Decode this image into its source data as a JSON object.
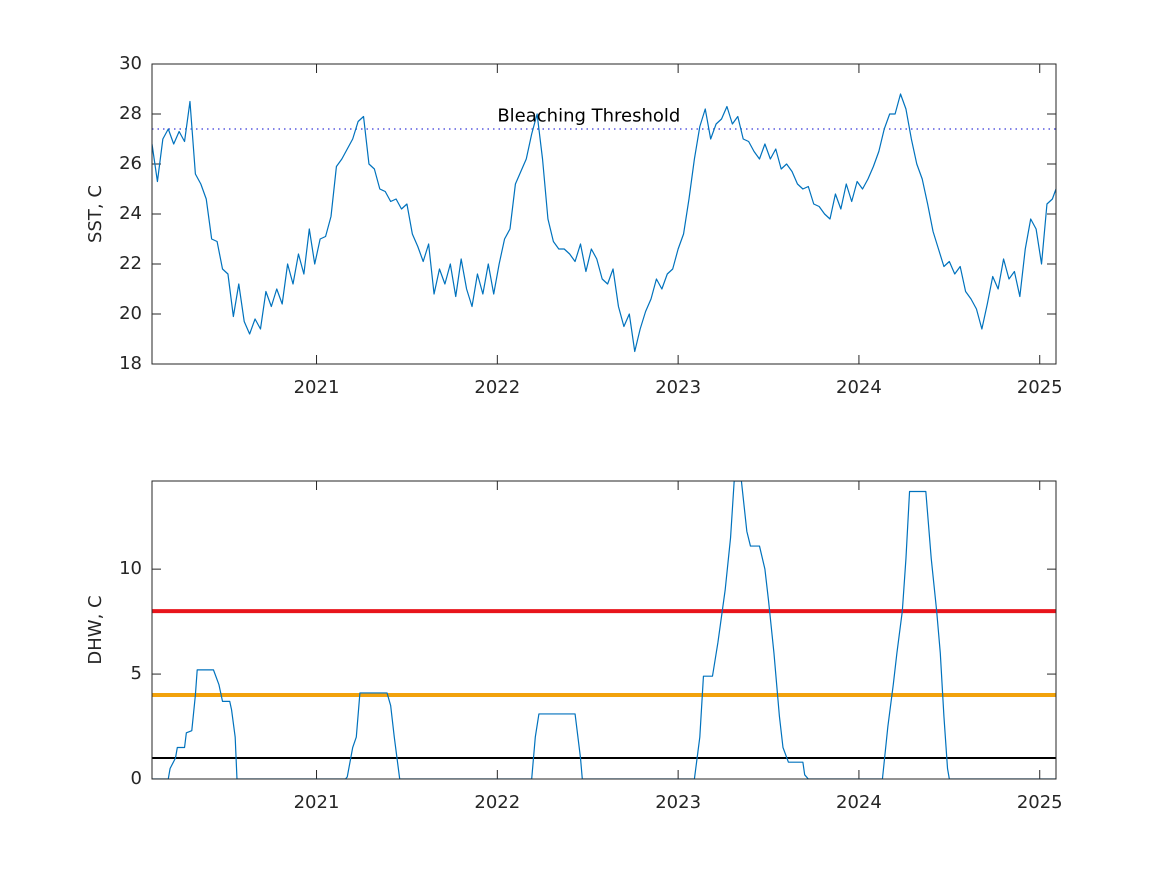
{
  "chart_data": [
    {
      "type": "line",
      "ylabel": "SST, C",
      "color": "#0072bd",
      "xlim": [
        2020.09,
        2025.09
      ],
      "xticks": [
        2021,
        2022,
        2023,
        2024,
        2025
      ],
      "ylim": [
        18,
        30
      ],
      "yticks": [
        18,
        20,
        22,
        24,
        26,
        28,
        30
      ],
      "threshold": 27.4,
      "threshold_color": "#5a5ae0",
      "annotation": {
        "text": "Bleaching Threshold",
        "x": 2022,
        "y": 27.9
      },
      "x": [
        2020.09,
        2020.12,
        2020.15,
        2020.18,
        2020.21,
        2020.24,
        2020.27,
        2020.3,
        2020.33,
        2020.36,
        2020.39,
        2020.42,
        2020.45,
        2020.48,
        2020.51,
        2020.54,
        2020.57,
        2020.6,
        2020.63,
        2020.66,
        2020.69,
        2020.72,
        2020.75,
        2020.78,
        2020.81,
        2020.84,
        2020.87,
        2020.9,
        2020.93,
        2020.96,
        2020.99,
        2021.02,
        2021.05,
        2021.08,
        2021.11,
        2021.14,
        2021.17,
        2021.2,
        2021.23,
        2021.26,
        2021.29,
        2021.32,
        2021.35,
        2021.38,
        2021.41,
        2021.44,
        2021.47,
        2021.5,
        2021.53,
        2021.56,
        2021.59,
        2021.62,
        2021.65,
        2021.68,
        2021.71,
        2021.74,
        2021.77,
        2021.8,
        2021.83,
        2021.86,
        2021.89,
        2021.92,
        2021.95,
        2021.98,
        2022.01,
        2022.04,
        2022.07,
        2022.1,
        2022.13,
        2022.16,
        2022.19,
        2022.22,
        2022.25,
        2022.28,
        2022.31,
        2022.34,
        2022.37,
        2022.4,
        2022.43,
        2022.46,
        2022.49,
        2022.52,
        2022.55,
        2022.58,
        2022.61,
        2022.64,
        2022.67,
        2022.7,
        2022.73,
        2022.76,
        2022.79,
        2022.82,
        2022.85,
        2022.88,
        2022.91,
        2022.94,
        2022.97,
        2023.0,
        2023.03,
        2023.06,
        2023.09,
        2023.12,
        2023.15,
        2023.18,
        2023.21,
        2023.24,
        2023.27,
        2023.3,
        2023.33,
        2023.36,
        2023.39,
        2023.42,
        2023.45,
        2023.48,
        2023.51,
        2023.54,
        2023.57,
        2023.6,
        2023.63,
        2023.66,
        2023.69,
        2023.72,
        2023.75,
        2023.78,
        2023.81,
        2023.84,
        2023.87,
        2023.9,
        2023.93,
        2023.96,
        2023.99,
        2024.02,
        2024.05,
        2024.08,
        2024.11,
        2024.14,
        2024.17,
        2024.2,
        2024.23,
        2024.26,
        2024.29,
        2024.32,
        2024.35,
        2024.38,
        2024.41,
        2024.44,
        2024.47,
        2024.5,
        2024.53,
        2024.56,
        2024.59,
        2024.62,
        2024.65,
        2024.68,
        2024.71,
        2024.74,
        2024.77,
        2024.8,
        2024.83,
        2024.86,
        2024.89,
        2024.92,
        2024.95,
        2024.98,
        2025.01,
        2025.04,
        2025.07,
        2025.09
      ],
      "values": [
        26.8,
        25.3,
        27.0,
        27.4,
        26.8,
        27.3,
        26.9,
        28.5,
        25.6,
        25.2,
        24.6,
        23.0,
        22.9,
        21.8,
        21.6,
        19.9,
        21.2,
        19.7,
        19.2,
        19.8,
        19.4,
        20.9,
        20.3,
        21.0,
        20.4,
        22.0,
        21.2,
        22.4,
        21.6,
        23.4,
        22.0,
        23.0,
        23.1,
        23.9,
        25.9,
        26.2,
        26.6,
        27.0,
        27.7,
        27.9,
        26.0,
        25.8,
        25.0,
        24.9,
        24.5,
        24.6,
        24.2,
        24.4,
        23.2,
        22.7,
        22.1,
        22.8,
        20.8,
        21.8,
        21.2,
        22.0,
        20.7,
        22.2,
        21.0,
        20.3,
        21.6,
        20.8,
        22.0,
        20.8,
        22.0,
        23.0,
        23.4,
        25.2,
        25.7,
        26.2,
        27.2,
        28.0,
        26.2,
        23.8,
        22.9,
        22.6,
        22.6,
        22.4,
        22.1,
        22.8,
        21.7,
        22.6,
        22.2,
        21.4,
        21.2,
        21.8,
        20.3,
        19.5,
        20.0,
        18.5,
        19.4,
        20.1,
        20.6,
        21.4,
        21.0,
        21.6,
        21.8,
        22.6,
        23.2,
        24.6,
        26.2,
        27.5,
        28.2,
        27.0,
        27.6,
        27.8,
        28.3,
        27.6,
        27.9,
        27.0,
        26.9,
        26.5,
        26.2,
        26.8,
        26.2,
        26.6,
        25.8,
        26.0,
        25.7,
        25.2,
        25.0,
        25.1,
        24.4,
        24.3,
        24.0,
        23.8,
        24.8,
        24.2,
        25.2,
        24.5,
        25.3,
        25.0,
        25.4,
        25.9,
        26.5,
        27.4,
        28.0,
        28.0,
        28.8,
        28.2,
        27.0,
        26.0,
        25.4,
        24.4,
        23.3,
        22.6,
        21.9,
        22.1,
        21.6,
        21.9,
        20.9,
        20.6,
        20.2,
        19.4,
        20.4,
        21.5,
        21.0,
        22.2,
        21.4,
        21.7,
        20.7,
        22.6,
        23.8,
        23.4,
        22.0,
        24.4,
        24.6,
        25.0
      ]
    },
    {
      "type": "line",
      "ylabel": "DHW, C",
      "color": "#0072bd",
      "xlim": [
        2020.09,
        2025.09
      ],
      "xticks": [
        2021,
        2022,
        2023,
        2024,
        2025
      ],
      "ylim": [
        0,
        14.2
      ],
      "yticks": [
        0,
        5,
        10
      ],
      "hlines": [
        {
          "value": 8,
          "color": "#e8141b"
        },
        {
          "value": 4,
          "color": "#f2a20c"
        },
        {
          "value": 1,
          "color": "#000000"
        }
      ],
      "x": [
        2020.09,
        2020.18,
        2020.19,
        2020.22,
        2020.23,
        2020.27,
        2020.28,
        2020.31,
        2020.33,
        2020.34,
        2020.43,
        2020.46,
        2020.48,
        2020.52,
        2020.53,
        2020.55,
        2020.56,
        2021.16,
        2021.17,
        2021.2,
        2021.22,
        2021.24,
        2021.39,
        2021.41,
        2021.43,
        2021.46,
        2022.19,
        2022.21,
        2022.23,
        2022.43,
        2022.46,
        2022.47,
        2023.09,
        2023.12,
        2023.14,
        2023.19,
        2023.22,
        2023.26,
        2023.29,
        2023.31,
        2023.35,
        2023.38,
        2023.4,
        2023.45,
        2023.48,
        2023.5,
        2023.53,
        2023.56,
        2023.58,
        2023.61,
        2023.69,
        2023.7,
        2023.72,
        2024.13,
        2024.16,
        2024.19,
        2024.21,
        2024.24,
        2024.26,
        2024.28,
        2024.37,
        2024.4,
        2024.43,
        2024.45,
        2024.47,
        2024.49,
        2024.5,
        2025.09
      ],
      "values": [
        0,
        0,
        0.5,
        1.0,
        1.5,
        1.5,
        2.2,
        2.3,
        4.0,
        5.2,
        5.2,
        4.5,
        3.7,
        3.7,
        3.3,
        2.0,
        0,
        0,
        0.1,
        1.5,
        2.0,
        4.1,
        4.1,
        3.5,
        2.0,
        0,
        0,
        2.0,
        3.1,
        3.1,
        1.0,
        0,
        0,
        2.0,
        4.9,
        4.9,
        6.5,
        9.0,
        11.5,
        14.2,
        14.2,
        11.8,
        11.1,
        11.1,
        10.0,
        8.5,
        6.0,
        3.0,
        1.5,
        0.8,
        0.8,
        0.2,
        0,
        0,
        2.5,
        4.5,
        6.0,
        8.0,
        10.5,
        13.7,
        13.7,
        10.5,
        8.0,
        6.0,
        3.0,
        0.5,
        0,
        0
      ]
    }
  ]
}
